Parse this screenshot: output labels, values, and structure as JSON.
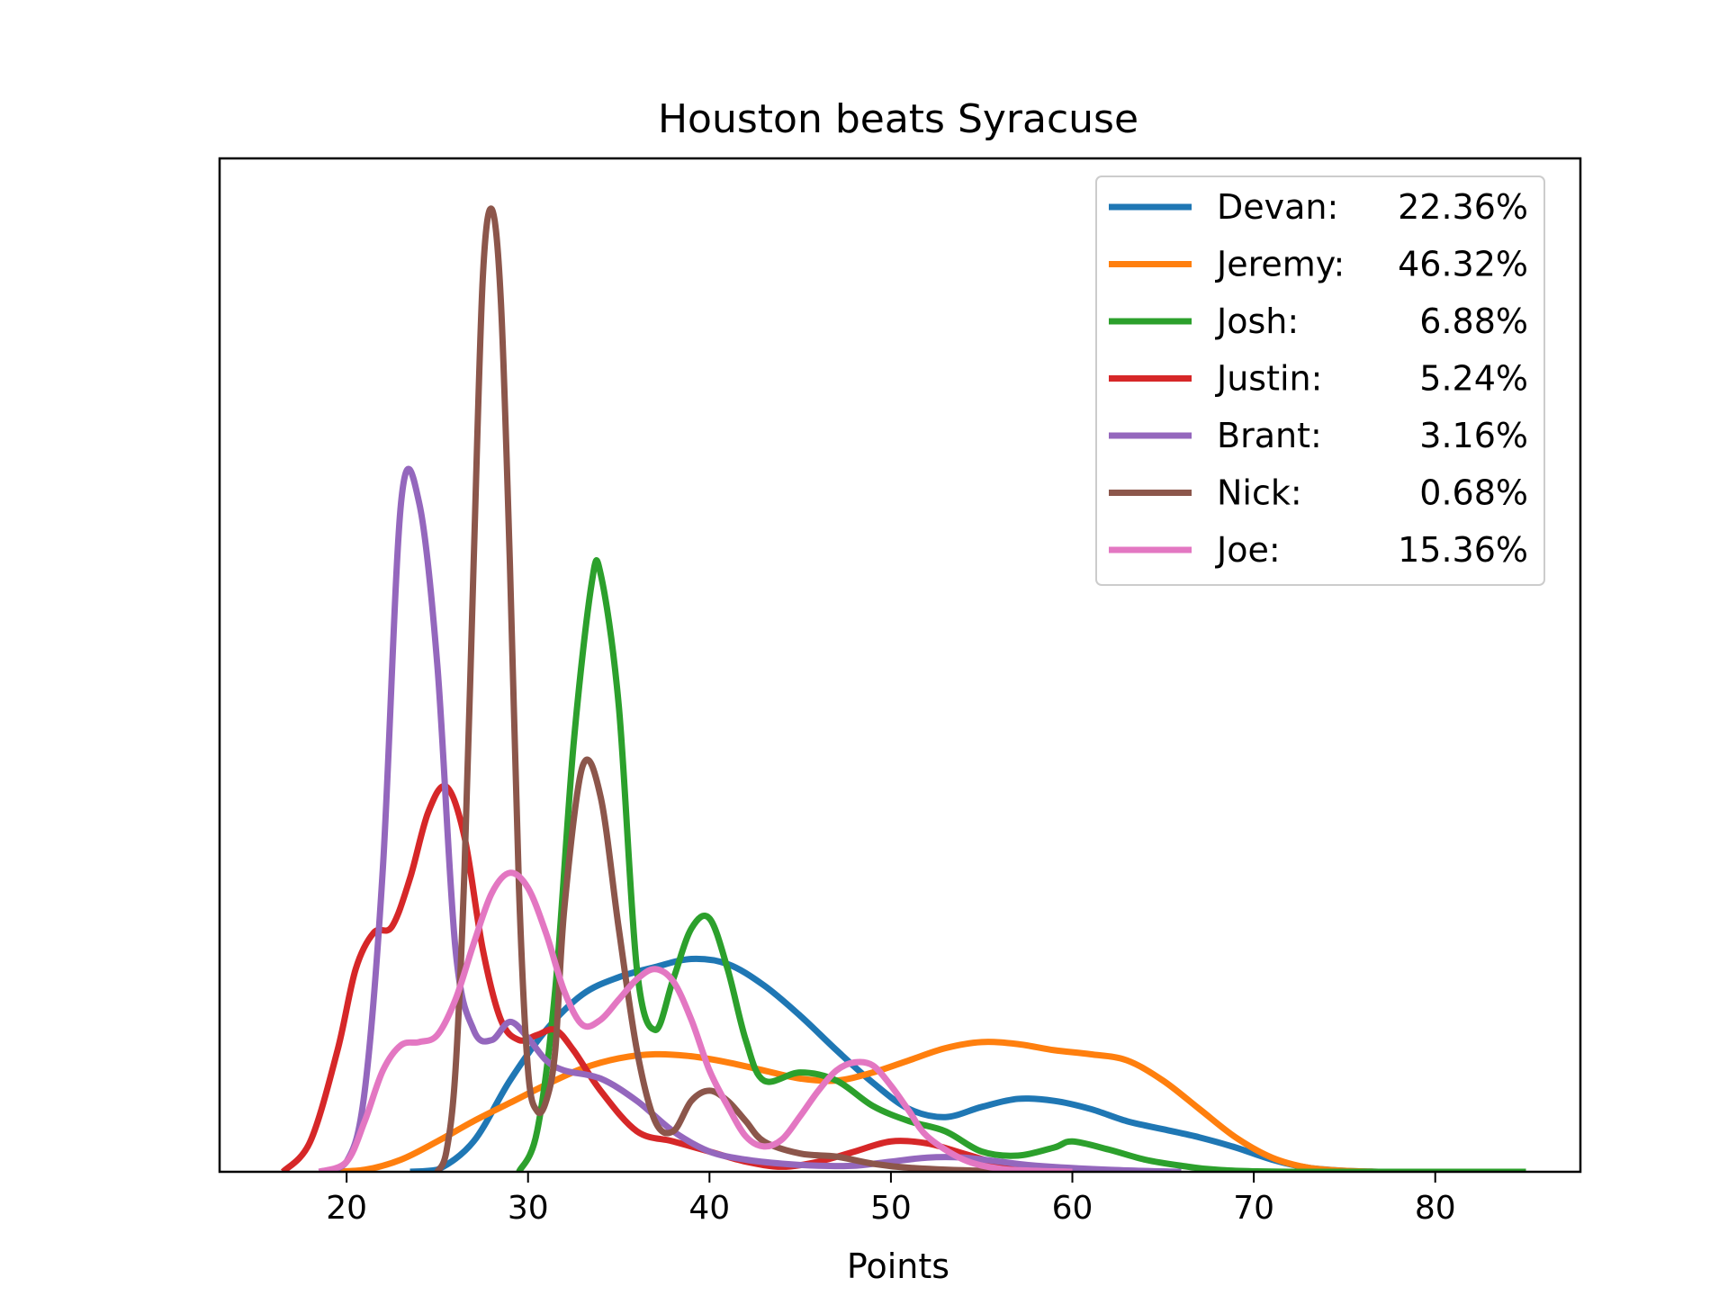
{
  "chart_data": {
    "type": "line",
    "title": "Houston beats Syracuse",
    "xlabel": "Points",
    "ylabel": "",
    "xlim": [
      13,
      88
    ],
    "ylim": [
      0,
      1.0
    ],
    "x_ticks": [
      20,
      30,
      40,
      50,
      60,
      70,
      80
    ],
    "y_ticks": [],
    "legend_position": "top-right",
    "series": [
      {
        "name": "Devan:",
        "percent": "22.36%",
        "color": "#1f77b4",
        "points": [
          [
            23.5,
            0.0
          ],
          [
            25,
            0.002
          ],
          [
            27,
            0.03
          ],
          [
            29,
            0.09
          ],
          [
            31,
            0.14
          ],
          [
            33,
            0.175
          ],
          [
            35,
            0.192
          ],
          [
            37,
            0.202
          ],
          [
            39,
            0.21
          ],
          [
            41,
            0.205
          ],
          [
            43,
            0.184
          ],
          [
            45,
            0.154
          ],
          [
            47,
            0.12
          ],
          [
            49,
            0.088
          ],
          [
            51,
            0.062
          ],
          [
            53,
            0.054
          ],
          [
            55,
            0.064
          ],
          [
            57,
            0.072
          ],
          [
            59,
            0.07
          ],
          [
            61,
            0.062
          ],
          [
            63,
            0.05
          ],
          [
            65,
            0.042
          ],
          [
            67,
            0.034
          ],
          [
            69,
            0.024
          ],
          [
            71,
            0.012
          ],
          [
            73,
            0.004
          ],
          [
            75,
            0.001
          ],
          [
            77,
            0.0
          ]
        ]
      },
      {
        "name": "Jeremy:",
        "percent": "46.32%",
        "color": "#ff7f0e",
        "points": [
          [
            19,
            0.0
          ],
          [
            21,
            0.002
          ],
          [
            23,
            0.012
          ],
          [
            25,
            0.03
          ],
          [
            27,
            0.05
          ],
          [
            29,
            0.068
          ],
          [
            31,
            0.086
          ],
          [
            33,
            0.102
          ],
          [
            35,
            0.112
          ],
          [
            37,
            0.116
          ],
          [
            39,
            0.114
          ],
          [
            41,
            0.108
          ],
          [
            43,
            0.1
          ],
          [
            45,
            0.092
          ],
          [
            47,
            0.09
          ],
          [
            49,
            0.098
          ],
          [
            51,
            0.11
          ],
          [
            53,
            0.122
          ],
          [
            55,
            0.128
          ],
          [
            57,
            0.126
          ],
          [
            59,
            0.12
          ],
          [
            61,
            0.116
          ],
          [
            63,
            0.11
          ],
          [
            65,
            0.09
          ],
          [
            67,
            0.062
          ],
          [
            69,
            0.034
          ],
          [
            71,
            0.014
          ],
          [
            73,
            0.004
          ],
          [
            75,
            0.001
          ],
          [
            77,
            0.0
          ]
        ]
      },
      {
        "name": "Josh:",
        "percent": "6.88%",
        "color": "#2ca02c",
        "points": [
          [
            29.5,
            0.0
          ],
          [
            30.5,
            0.04
          ],
          [
            31.5,
            0.18
          ],
          [
            32.5,
            0.42
          ],
          [
            33.5,
            0.58
          ],
          [
            34,
            0.59
          ],
          [
            35,
            0.46
          ],
          [
            36,
            0.2
          ],
          [
            37,
            0.14
          ],
          [
            38,
            0.19
          ],
          [
            39,
            0.24
          ],
          [
            40,
            0.25
          ],
          [
            41,
            0.2
          ],
          [
            42,
            0.13
          ],
          [
            43,
            0.09
          ],
          [
            45,
            0.098
          ],
          [
            47,
            0.09
          ],
          [
            49,
            0.065
          ],
          [
            51,
            0.05
          ],
          [
            53,
            0.04
          ],
          [
            55,
            0.02
          ],
          [
            57,
            0.016
          ],
          [
            59,
            0.024
          ],
          [
            60,
            0.03
          ],
          [
            62,
            0.022
          ],
          [
            64,
            0.012
          ],
          [
            66,
            0.006
          ],
          [
            68,
            0.002
          ],
          [
            72,
            0.0
          ],
          [
            85,
            0.0
          ]
        ]
      },
      {
        "name": "Justin:",
        "percent": "5.24%",
        "color": "#d62728",
        "points": [
          [
            16.5,
            0.0
          ],
          [
            18,
            0.03
          ],
          [
            19.5,
            0.12
          ],
          [
            20.5,
            0.2
          ],
          [
            21.5,
            0.236
          ],
          [
            22.5,
            0.242
          ],
          [
            23.5,
            0.29
          ],
          [
            24.5,
            0.355
          ],
          [
            25.5,
            0.38
          ],
          [
            26.5,
            0.33
          ],
          [
            27.5,
            0.22
          ],
          [
            28.5,
            0.15
          ],
          [
            29.5,
            0.13
          ],
          [
            30.5,
            0.135
          ],
          [
            31.5,
            0.14
          ],
          [
            32.5,
            0.12
          ],
          [
            34,
            0.08
          ],
          [
            36,
            0.04
          ],
          [
            38,
            0.03
          ],
          [
            40,
            0.02
          ],
          [
            42,
            0.01
          ],
          [
            44,
            0.005
          ],
          [
            46,
            0.01
          ],
          [
            48,
            0.02
          ],
          [
            50,
            0.03
          ],
          [
            52,
            0.028
          ],
          [
            54,
            0.018
          ],
          [
            56,
            0.008
          ],
          [
            58,
            0.003
          ],
          [
            60,
            0.0
          ]
        ]
      },
      {
        "name": "Brant:",
        "percent": "3.16%",
        "color": "#9467bd",
        "points": [
          [
            18.5,
            0.0
          ],
          [
            20,
            0.01
          ],
          [
            21,
            0.08
          ],
          [
            22,
            0.3
          ],
          [
            23,
            0.66
          ],
          [
            24,
            0.66
          ],
          [
            25,
            0.5
          ],
          [
            26,
            0.22
          ],
          [
            27,
            0.14
          ],
          [
            28,
            0.13
          ],
          [
            29,
            0.148
          ],
          [
            30,
            0.132
          ],
          [
            31,
            0.11
          ],
          [
            32,
            0.1
          ],
          [
            34,
            0.092
          ],
          [
            36,
            0.07
          ],
          [
            38,
            0.04
          ],
          [
            40,
            0.02
          ],
          [
            42,
            0.012
          ],
          [
            44,
            0.008
          ],
          [
            46,
            0.006
          ],
          [
            48,
            0.006
          ],
          [
            50,
            0.01
          ],
          [
            52,
            0.014
          ],
          [
            54,
            0.014
          ],
          [
            56,
            0.01
          ],
          [
            58,
            0.006
          ],
          [
            62,
            0.002
          ],
          [
            66,
            0.0
          ]
        ]
      },
      {
        "name": "Nick:",
        "percent": "0.68%",
        "color": "#8c564b",
        "points": [
          [
            25,
            0.0
          ],
          [
            25.5,
            0.02
          ],
          [
            26,
            0.1
          ],
          [
            26.5,
            0.3
          ],
          [
            27,
            0.6
          ],
          [
            27.5,
            0.88
          ],
          [
            28,
            0.95
          ],
          [
            28.5,
            0.86
          ],
          [
            29,
            0.6
          ],
          [
            29.5,
            0.28
          ],
          [
            30,
            0.1
          ],
          [
            30.5,
            0.06
          ],
          [
            31,
            0.07
          ],
          [
            31.5,
            0.12
          ],
          [
            32,
            0.26
          ],
          [
            33,
            0.4
          ],
          [
            34,
            0.37
          ],
          [
            35,
            0.24
          ],
          [
            36,
            0.12
          ],
          [
            37,
            0.05
          ],
          [
            38,
            0.04
          ],
          [
            39,
            0.07
          ],
          [
            40,
            0.08
          ],
          [
            41,
            0.07
          ],
          [
            42,
            0.05
          ],
          [
            43,
            0.03
          ],
          [
            45,
            0.018
          ],
          [
            47,
            0.015
          ],
          [
            49,
            0.008
          ],
          [
            51,
            0.004
          ],
          [
            55,
            0.001
          ],
          [
            60,
            0.0
          ]
        ]
      },
      {
        "name": "Joe:",
        "percent": "15.36%",
        "color": "#e377c2",
        "points": [
          [
            18.5,
            0.0
          ],
          [
            20,
            0.01
          ],
          [
            21,
            0.05
          ],
          [
            22,
            0.1
          ],
          [
            23,
            0.125
          ],
          [
            24,
            0.128
          ],
          [
            25,
            0.135
          ],
          [
            26,
            0.17
          ],
          [
            27,
            0.225
          ],
          [
            28,
            0.275
          ],
          [
            29,
            0.295
          ],
          [
            30,
            0.28
          ],
          [
            31,
            0.235
          ],
          [
            32,
            0.178
          ],
          [
            33,
            0.145
          ],
          [
            34,
            0.15
          ],
          [
            35,
            0.17
          ],
          [
            36,
            0.19
          ],
          [
            37,
            0.2
          ],
          [
            38,
            0.188
          ],
          [
            39,
            0.15
          ],
          [
            40,
            0.1
          ],
          [
            41,
            0.065
          ],
          [
            42,
            0.035
          ],
          [
            43,
            0.025
          ],
          [
            44,
            0.032
          ],
          [
            45,
            0.055
          ],
          [
            46,
            0.08
          ],
          [
            47,
            0.1
          ],
          [
            48,
            0.108
          ],
          [
            49,
            0.105
          ],
          [
            50,
            0.085
          ],
          [
            51,
            0.06
          ],
          [
            52,
            0.035
          ],
          [
            54,
            0.012
          ],
          [
            56,
            0.003
          ],
          [
            58,
            0.001
          ],
          [
            60,
            0.0
          ]
        ]
      }
    ]
  }
}
